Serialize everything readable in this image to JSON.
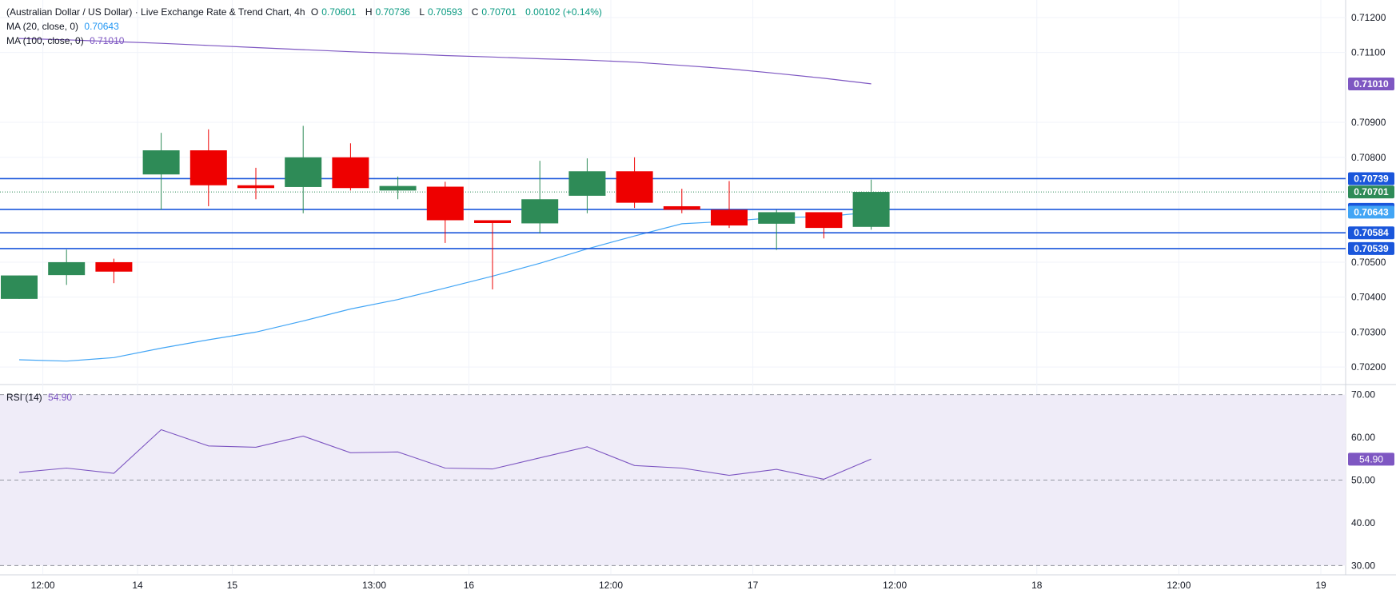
{
  "header": {
    "symbol_title": "(Australian Dollar / US Dollar) · Live Exchange Rate & Trend Chart, 4h",
    "open_label": "O",
    "open_value": "0.70601",
    "high_label": "H",
    "high_value": "0.70736",
    "low_label": "L",
    "low_value": "0.70593",
    "close_label": "C",
    "close_value": "0.70701",
    "change": "0.00102 (+0.14%)"
  },
  "indicators": {
    "ma20_label": "MA (20, close, 0)",
    "ma20_value": "0.70643",
    "ma100_label": "MA (100, close, 0)",
    "ma100_value": "0.71010",
    "rsi_label": "RSI (14)",
    "rsi_value": "54.90"
  },
  "colors": {
    "up": "#2e8b57",
    "down": "#ee0000",
    "ma20": "#42a5f5",
    "ma100": "#7e57c2",
    "hline": "#1a56db",
    "rsi": "#7e57c2",
    "rsi_band": "#efecf8",
    "close_label_bg": "#2e8b57"
  },
  "chart_data": [
    {
      "type": "candlestick",
      "title": "",
      "x_labels": [
        {
          "label": "12:00",
          "index": 0.5
        },
        {
          "label": "14",
          "index": 2.5
        },
        {
          "label": "15",
          "index": 4.5
        },
        {
          "label": "13:00",
          "index": 7.5
        },
        {
          "label": "16",
          "index": 9.5
        },
        {
          "label": "12:00",
          "index": 12.5
        },
        {
          "label": "17",
          "index": 15.5
        },
        {
          "label": "12:00",
          "index": 18.5
        },
        {
          "label": "18",
          "index": 21.5
        },
        {
          "label": "12:00",
          "index": 24.5
        },
        {
          "label": "19",
          "index": 27.5
        }
      ],
      "ylim": [
        0.7015,
        0.7125
      ],
      "y_ticks": [
        "0.70200",
        "0.70300",
        "0.70400",
        "0.70500",
        "0.70800",
        "0.70900",
        "0.71100",
        "0.71200"
      ],
      "candles": [
        {
          "o": 0.70395,
          "h": 0.70462,
          "l": 0.70395,
          "c": 0.70462
        },
        {
          "o": 0.70463,
          "h": 0.70536,
          "l": 0.70435,
          "c": 0.705
        },
        {
          "o": 0.705,
          "h": 0.7051,
          "l": 0.7044,
          "c": 0.70473
        },
        {
          "o": 0.70751,
          "h": 0.7087,
          "l": 0.7065,
          "c": 0.7082
        },
        {
          "o": 0.7082,
          "h": 0.7088,
          "l": 0.7066,
          "c": 0.7072
        },
        {
          "o": 0.7072,
          "h": 0.7077,
          "l": 0.7068,
          "c": 0.70712
        },
        {
          "o": 0.70715,
          "h": 0.7089,
          "l": 0.7064,
          "c": 0.708
        },
        {
          "o": 0.708,
          "h": 0.7084,
          "l": 0.70705,
          "c": 0.70712
        },
        {
          "o": 0.70705,
          "h": 0.70745,
          "l": 0.7068,
          "c": 0.70718
        },
        {
          "o": 0.70716,
          "h": 0.7073,
          "l": 0.70555,
          "c": 0.7062
        },
        {
          "o": 0.7062,
          "h": 0.7062,
          "l": 0.70422,
          "c": 0.70612
        },
        {
          "o": 0.70611,
          "h": 0.7079,
          "l": 0.70582,
          "c": 0.7068
        },
        {
          "o": 0.7069,
          "h": 0.70797,
          "l": 0.7064,
          "c": 0.7076
        },
        {
          "o": 0.7076,
          "h": 0.708,
          "l": 0.70655,
          "c": 0.7067
        },
        {
          "o": 0.7066,
          "h": 0.7071,
          "l": 0.7064,
          "c": 0.7065
        },
        {
          "o": 0.7065,
          "h": 0.70732,
          "l": 0.70598,
          "c": 0.70605
        },
        {
          "o": 0.7061,
          "h": 0.7065,
          "l": 0.70535,
          "c": 0.70643
        },
        {
          "o": 0.70643,
          "h": 0.70643,
          "l": 0.70568,
          "c": 0.70598
        },
        {
          "o": 0.70601,
          "h": 0.70736,
          "l": 0.70593,
          "c": 0.70701
        }
      ],
      "ma20": [
        0.70221,
        0.70217,
        0.70227,
        0.70254,
        0.70278,
        0.703,
        0.70332,
        0.70366,
        0.70393,
        0.70426,
        0.7046,
        0.70497,
        0.70538,
        0.70575,
        0.7061,
        0.70617,
        0.70628,
        0.7063,
        0.70643
      ],
      "ma100": [
        0.7114,
        0.71136,
        0.71131,
        0.71126,
        0.7112,
        0.71114,
        0.71108,
        0.71102,
        0.71097,
        0.71091,
        0.71087,
        0.71082,
        0.71078,
        0.71072,
        0.71063,
        0.71053,
        0.7104,
        0.71026,
        0.7101
      ],
      "horizontal_levels": [
        0.70739,
        0.70651,
        0.70584,
        0.70539
      ],
      "price_labels": [
        {
          "value": 0.7101,
          "label": "0.71010",
          "kind": "ma100"
        },
        {
          "value": 0.70739,
          "label": "0.70739",
          "kind": "hline"
        },
        {
          "value": 0.70701,
          "label": "0.70701",
          "kind": "close"
        },
        {
          "value": 0.70651,
          "label": "0.70651",
          "kind": "hline"
        },
        {
          "value": 0.70643,
          "label": "0.70643",
          "kind": "ma20"
        },
        {
          "value": 0.70584,
          "label": "0.70584",
          "kind": "hline"
        },
        {
          "value": 0.70539,
          "label": "0.70539",
          "kind": "hline"
        }
      ]
    },
    {
      "type": "line",
      "title": "RSI (14)",
      "ylim": [
        28,
        72
      ],
      "band": [
        30,
        70
      ],
      "mid": 50,
      "y_ticks": [
        "70.00",
        "60.00",
        "50.00",
        "40.00",
        "30.00"
      ],
      "values": [
        51.8,
        52.8,
        51.6,
        61.8,
        58.0,
        57.7,
        60.3,
        56.4,
        56.6,
        52.8,
        52.6,
        55.2,
        57.8,
        53.4,
        52.8,
        51.1,
        52.5,
        50.2,
        54.9
      ],
      "last_label": "54.90"
    }
  ]
}
